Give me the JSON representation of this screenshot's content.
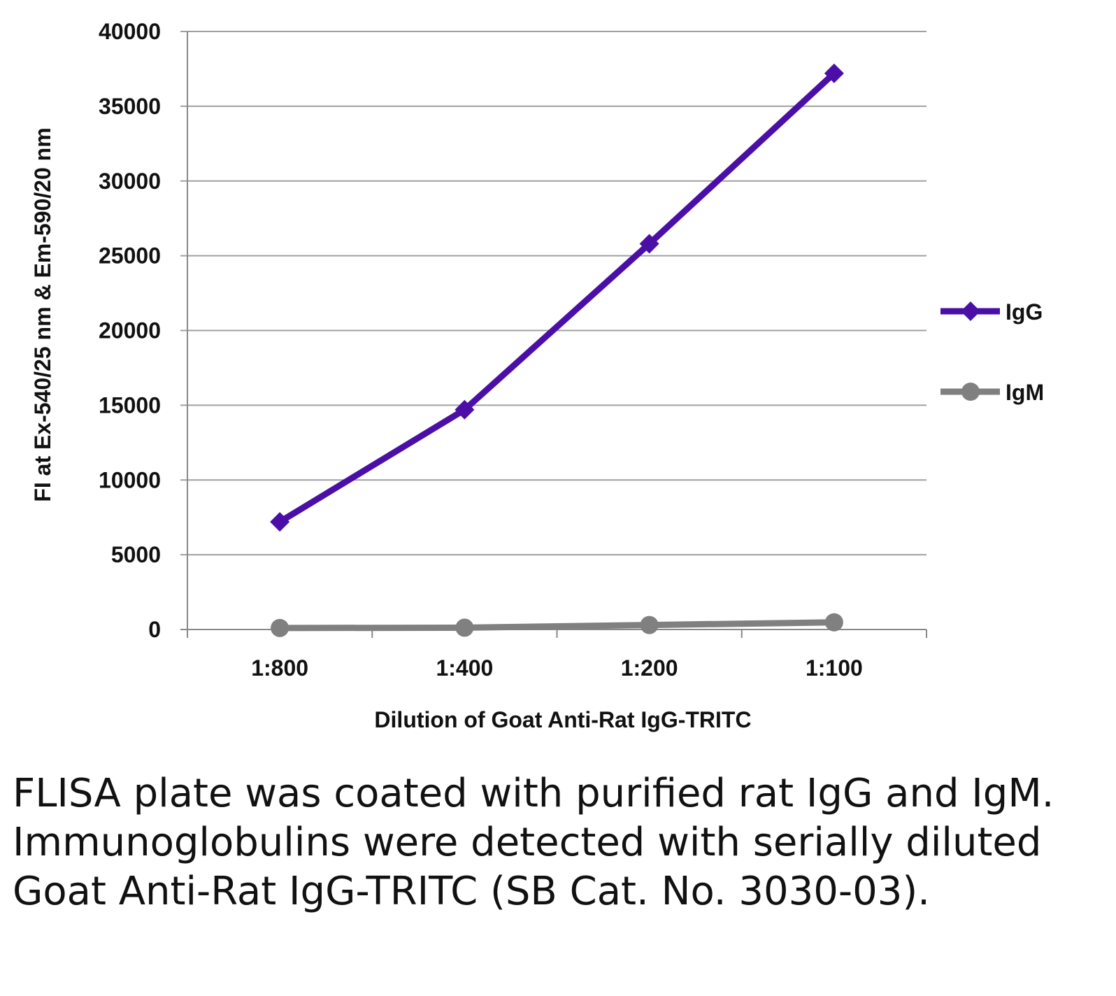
{
  "chart_data": {
    "type": "line",
    "categories": [
      "1:800",
      "1:400",
      "1:200",
      "1:100"
    ],
    "series": [
      {
        "name": "IgG",
        "values": [
          7200,
          14700,
          25800,
          37200
        ],
        "color": "#4b0fa8",
        "marker": "diamond"
      },
      {
        "name": "IgM",
        "values": [
          100,
          120,
          300,
          480
        ],
        "color": "#808080",
        "marker": "circle"
      }
    ],
    "xlabel": "Dilution of Goat Anti-Rat IgG-TRITC",
    "ylabel": "FI at Ex-540/25 nm & Em-590/20 nm",
    "ylim": [
      0,
      40000
    ],
    "yticks": [
      0,
      5000,
      10000,
      15000,
      20000,
      25000,
      30000,
      35000,
      40000
    ],
    "grid": true,
    "legend": "right"
  },
  "caption": "FLISA plate was coated with purified rat IgG and IgM.  Immunoglobulins were detected with serially diluted Goat Anti-Rat IgG-TRITC (SB Cat. No. 3030-03)."
}
